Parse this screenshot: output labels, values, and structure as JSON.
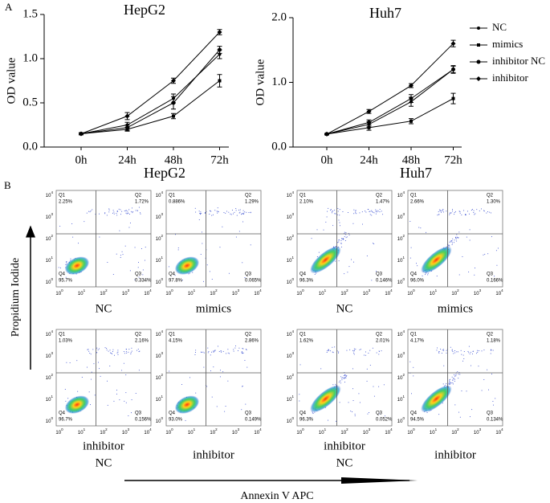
{
  "panel_labels": [
    "A",
    "B"
  ],
  "chart_data": [
    {
      "type": "line",
      "title": "HepG2",
      "y_label": "OD value",
      "categories": [
        "0h",
        "24h",
        "48h",
        "72h"
      ],
      "ylim": [
        0,
        1.5
      ],
      "yticks": [
        {
          "value": 0,
          "label": "0.0"
        },
        {
          "value": 0.5,
          "label": "0.5"
        },
        {
          "value": 1,
          "label": "1.0"
        },
        {
          "value": 1.5,
          "label": "1.5"
        }
      ],
      "series": [
        {
          "name": "NC",
          "color": "#000000",
          "values": [
            0.15,
            0.25,
            0.55,
            1.05
          ],
          "errors": [
            0.01,
            0.03,
            0.05,
            0.05
          ]
        },
        {
          "name": "mimics",
          "color": "#000000",
          "values": [
            0.15,
            0.2,
            0.35,
            0.75
          ],
          "errors": [
            0.01,
            0.02,
            0.03,
            0.07
          ]
        },
        {
          "name": "inhibitor NC",
          "color": "#000000",
          "values": [
            0.15,
            0.22,
            0.5,
            1.1
          ],
          "errors": [
            0.01,
            0.03,
            0.07,
            0.04
          ]
        },
        {
          "name": "inhibitor",
          "color": "#000000",
          "values": [
            0.15,
            0.35,
            0.75,
            1.3
          ],
          "errors": [
            0.01,
            0.04,
            0.03,
            0.03
          ]
        }
      ]
    },
    {
      "type": "line",
      "title": "Huh7",
      "y_label": "OD value",
      "legend": "outside-right",
      "categories": [
        "0h",
        "24h",
        "48h",
        "72h"
      ],
      "ylim": [
        0,
        2
      ],
      "yticks": [
        {
          "value": 0,
          "label": "0.0"
        },
        {
          "value": 1,
          "label": "1.0"
        },
        {
          "value": 2,
          "label": "2.0"
        }
      ],
      "series": [
        {
          "name": "NC",
          "color": "#000000",
          "values": [
            0.2,
            0.35,
            0.7,
            1.2
          ],
          "errors": [
            0.01,
            0.04,
            0.07,
            0.06
          ]
        },
        {
          "name": "mimics",
          "color": "#000000",
          "values": [
            0.2,
            0.3,
            0.4,
            0.75
          ],
          "errors": [
            0.01,
            0.04,
            0.04,
            0.08
          ]
        },
        {
          "name": "inhibitor NC",
          "color": "#000000",
          "values": [
            0.2,
            0.38,
            0.75,
            1.2
          ],
          "errors": [
            0.01,
            0.04,
            0.06,
            0.05
          ]
        },
        {
          "name": "inhibitor",
          "color": "#000000",
          "values": [
            0.2,
            0.55,
            0.95,
            1.6
          ],
          "errors": [
            0.01,
            0.03,
            0.03,
            0.05
          ]
        }
      ]
    }
  ],
  "flow": {
    "titles": [
      "HepG2",
      "Huh7"
    ],
    "y_label": "Propidium Iodide",
    "x_label": "Annexin V APC",
    "tick_base": "10",
    "tick_exponents": [
      "0",
      "1",
      "2",
      "3",
      "4"
    ],
    "quadrants": [
      "Q1",
      "Q2",
      "Q3",
      "Q4"
    ],
    "plots": [
      {
        "caption": [
          "NC"
        ],
        "percents": [
          "2.25%",
          "1.72%",
          "0.334%",
          "95.7%"
        ]
      },
      {
        "caption": [
          "mimics"
        ],
        "percents": [
          "0.886%",
          "1.29%",
          "0.065%",
          "97.8%"
        ]
      },
      {
        "caption": [
          "NC"
        ],
        "percents": [
          "2.10%",
          "1.47%",
          "0.146%",
          "96.3%"
        ]
      },
      {
        "caption": [
          "mimics"
        ],
        "percents": [
          "2.66%",
          "1.30%",
          "0.166%",
          "96.0%"
        ]
      },
      {
        "caption": [
          "inhibitor",
          "NC"
        ],
        "percents": [
          "1.03%",
          "2.16%",
          "0.156%",
          "96.7%"
        ]
      },
      {
        "caption": [
          "inhibitor"
        ],
        "percents": [
          "4.15%",
          "2.86%",
          "0.149%",
          "93.0%"
        ]
      },
      {
        "caption": [
          "inhibitor",
          "NC"
        ],
        "percents": [
          "1.62%",
          "2.01%",
          "0.052%",
          "96.3%"
        ]
      },
      {
        "caption": [
          "inhibitor"
        ],
        "percents": [
          "4.17%",
          "1.18%",
          "0.134%",
          "94.5%"
        ]
      }
    ]
  }
}
